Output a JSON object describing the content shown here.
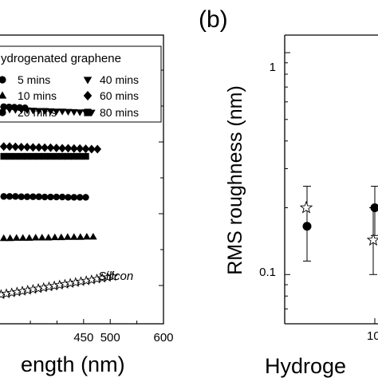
{
  "chart_data": [
    {
      "type": "scatter",
      "panel_label": "",
      "title": "",
      "xlabel": "ength (nm)",
      "ylabel": "",
      "xlim": [
        290,
        600
      ],
      "ylim": [
        0,
        1
      ],
      "x_ticks": [
        "450",
        "500",
        "600"
      ],
      "grid": false,
      "legend": {
        "title": "ydrogenated graphene",
        "placement": "top",
        "entries": [
          {
            "label": "5 mins",
            "marker": "circle-partial"
          },
          {
            "label": "40 mins",
            "marker": "triangle-down"
          },
          {
            "label": "10 mins",
            "marker": "triangle-up-partial"
          },
          {
            "label": "60 mins",
            "marker": "diamond"
          },
          {
            "label": "20 mins",
            "marker": "circle-partial"
          },
          {
            "label": "80 mins",
            "marker": "square"
          }
        ]
      },
      "annotations": [
        "Silicon"
      ],
      "series": [
        {
          "label": "40 mins",
          "marker": "triangle-down",
          "fill": "#000000",
          "x": [
            300,
            311,
            322,
            333,
            344,
            355,
            366,
            377,
            388,
            399,
            410,
            421,
            432,
            443,
            454,
            465
          ],
          "y": [
            0.743,
            0.742,
            0.741,
            0.741,
            0.74,
            0.739,
            0.738,
            0.738,
            0.737,
            0.736,
            0.736,
            0.735,
            0.734,
            0.733,
            0.733,
            0.732
          ]
        },
        {
          "label": "5 mins",
          "marker": "circle",
          "fill": "#000000",
          "x": [
            300,
            310,
            320,
            330,
            340
          ],
          "y": [
            0.752,
            0.751,
            0.75,
            0.749,
            0.748
          ]
        },
        {
          "label": "60 mins",
          "marker": "diamond",
          "fill": "#000000",
          "x": [
            300,
            311,
            322,
            333,
            344,
            355,
            366,
            377,
            388,
            399,
            410,
            421,
            432,
            443,
            454,
            465,
            476
          ],
          "y": [
            0.614,
            0.614,
            0.613,
            0.612,
            0.612,
            0.611,
            0.611,
            0.61,
            0.61,
            0.609,
            0.608,
            0.608,
            0.607,
            0.607,
            0.606,
            0.605,
            0.605
          ]
        },
        {
          "label": "80 mins",
          "marker": "square",
          "fill": "#000000",
          "x": [
            300,
            311,
            322,
            333,
            344,
            355,
            366,
            377,
            388,
            399,
            410,
            421,
            432,
            443,
            454
          ],
          "y": [
            0.58,
            0.58,
            0.58,
            0.58,
            0.58,
            0.58,
            0.58,
            0.58,
            0.58,
            0.58,
            0.58,
            0.58,
            0.58,
            0.58,
            0.58
          ]
        },
        {
          "label": "20 mins",
          "marker": "circle",
          "fill": "#000000",
          "x": [
            300,
            311,
            322,
            333,
            344,
            355,
            366,
            377,
            388,
            399,
            410,
            421,
            432,
            443,
            454
          ],
          "y": [
            0.441,
            0.441,
            0.441,
            0.44,
            0.44,
            0.44,
            0.44,
            0.439,
            0.439,
            0.439,
            0.439,
            0.438,
            0.438,
            0.438,
            0.438
          ]
        },
        {
          "label": "10 mins",
          "marker": "triangle-up",
          "fill": "#000000",
          "x": [
            300,
            312,
            324,
            336,
            348,
            360,
            372,
            384,
            396,
            408,
            420,
            432,
            444,
            456,
            468
          ],
          "y": [
            0.296,
            0.296,
            0.297,
            0.297,
            0.297,
            0.298,
            0.298,
            0.298,
            0.299,
            0.299,
            0.3,
            0.3,
            0.3,
            0.301,
            0.301
          ]
        },
        {
          "label": "Silicon",
          "marker": "star",
          "fill": "none",
          "x": [
            295,
            305,
            315,
            325,
            335,
            345,
            355,
            365,
            375,
            385,
            395,
            405,
            415,
            425,
            435,
            445,
            455,
            465,
            475,
            485,
            495,
            505
          ],
          "y": [
            0.101,
            0.104,
            0.107,
            0.11,
            0.113,
            0.116,
            0.119,
            0.122,
            0.125,
            0.128,
            0.131,
            0.134,
            0.137,
            0.14,
            0.143,
            0.146,
            0.149,
            0.152,
            0.155,
            0.158,
            0.161,
            0.164
          ]
        }
      ]
    },
    {
      "type": "scatter",
      "panel_label": "(b)",
      "xlabel": "Hydroge",
      "ylabel": "RMS roughness (nm)",
      "yscale": "log",
      "ylim": [
        0.06,
        1.2
      ],
      "y_ticks": [
        "1",
        "0.1"
      ],
      "x_ticks": [
        "10"
      ],
      "grid": false,
      "series": [
        {
          "marker": "circle",
          "fill": "#000000",
          "points": [
            {
              "x": 0,
              "y": 0.165,
              "yerr_low": 0.115,
              "yerr_high": 0.25
            },
            {
              "x": 10,
              "y": 0.2,
              "yerr_low": 0.15,
              "yerr_high": 0.25
            }
          ]
        },
        {
          "marker": "star",
          "fill": "none",
          "points": [
            {
              "x": 0,
              "y": 0.2
            },
            {
              "x": 10,
              "y": 0.143,
              "yerr_low": 0.1,
              "yerr_high": 0.2
            }
          ]
        }
      ]
    }
  ]
}
